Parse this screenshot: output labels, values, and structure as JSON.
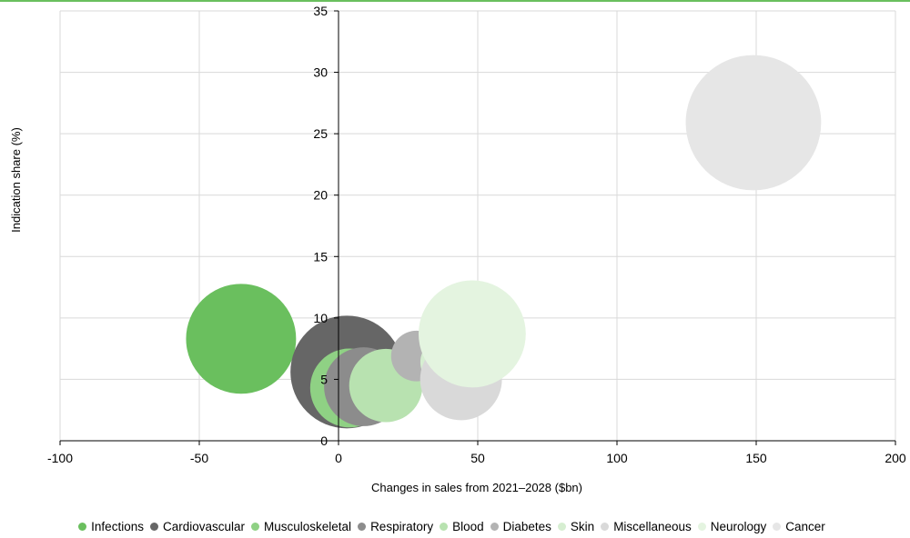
{
  "chart_data": {
    "type": "scatter",
    "title": "",
    "xlabel": "Changes in sales from 2021–2028 ($bn)",
    "ylabel": "Indication share (%)",
    "xlim": [
      -100,
      200
    ],
    "ylim": [
      0,
      35
    ],
    "x_ticks": [
      -100,
      -50,
      0,
      50,
      100,
      150,
      200
    ],
    "y_ticks": [
      0,
      5,
      10,
      15,
      20,
      25,
      30,
      35
    ],
    "grid": true,
    "legend_position": "bottom",
    "series": [
      {
        "name": "Infections",
        "color": "#6abf5e",
        "x": -35,
        "y": 8.3,
        "bubble_size": 39
      },
      {
        "name": "Cardiovascular",
        "color": "#666666",
        "x": 3,
        "y": 5.6,
        "bubble_size": 40
      },
      {
        "name": "Musculoskeletal",
        "color": "#8fd184",
        "x": 4,
        "y": 4.3,
        "bubble_size": 28
      },
      {
        "name": "Respiratory",
        "color": "#8c8c8c",
        "x": 9,
        "y": 4.4,
        "bubble_size": 28
      },
      {
        "name": "Blood",
        "color": "#b8e2b0",
        "x": 17,
        "y": 4.5,
        "bubble_size": 26
      },
      {
        "name": "Diabetes",
        "color": "#b3b3b3",
        "x": 28,
        "y": 6.9,
        "bubble_size": 18
      },
      {
        "name": "Skin",
        "color": "#d6eed1",
        "x": 38,
        "y": 6.4,
        "bubble_size": 17
      },
      {
        "name": "Miscellaneous",
        "color": "#d9d9d9",
        "x": 44,
        "y": 5.0,
        "bubble_size": 29
      },
      {
        "name": "Neurology",
        "color": "#e4f4e0",
        "x": 48,
        "y": 8.7,
        "bubble_size": 38
      },
      {
        "name": "Cancer",
        "color": "#e6e6e6",
        "x": 149,
        "y": 25.9,
        "bubble_size": 48
      }
    ]
  }
}
